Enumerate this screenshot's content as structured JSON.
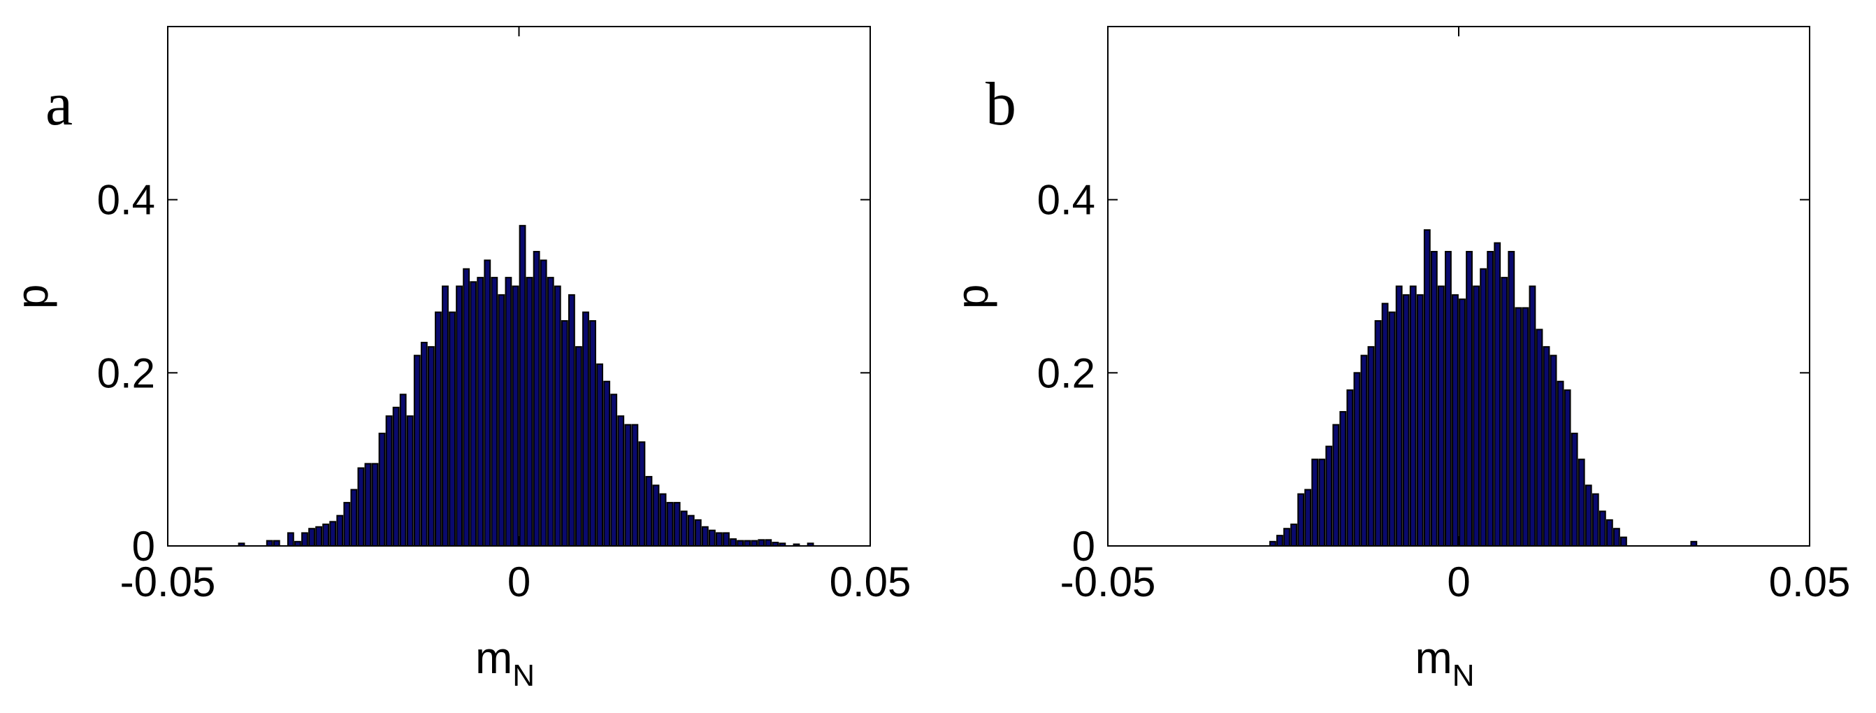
{
  "chart_data": [
    {
      "type": "bar",
      "panel_label": "a",
      "xlabel": "m",
      "xlabel_subscript": "N",
      "ylabel": "p",
      "xlim": [
        -0.05,
        0.05
      ],
      "ylim": [
        0,
        0.6
      ],
      "xticks": [
        -0.05,
        0,
        0.05
      ],
      "xtick_labels": [
        "-0.05",
        "0",
        "0.05"
      ],
      "yticks": [
        0,
        0.2,
        0.4
      ],
      "ytick_labels": [
        "0",
        "0.2",
        "0.4"
      ],
      "grid": false,
      "bar_color": "#0a0a6e",
      "x": [
        -0.0395,
        -0.0355,
        -0.0345,
        -0.0325,
        -0.0315,
        -0.0305,
        -0.0295,
        -0.0285,
        -0.0275,
        -0.0265,
        -0.0255,
        -0.0245,
        -0.0235,
        -0.0225,
        -0.0215,
        -0.0205,
        -0.0195,
        -0.0185,
        -0.0175,
        -0.0165,
        -0.0155,
        -0.0145,
        -0.0135,
        -0.0125,
        -0.0115,
        -0.0105,
        -0.0095,
        -0.0085,
        -0.0075,
        -0.0065,
        -0.0055,
        -0.0045,
        -0.0035,
        -0.0025,
        -0.0015,
        -0.0005,
        0.0005,
        0.0015,
        0.0025,
        0.0035,
        0.0045,
        0.0055,
        0.0065,
        0.0075,
        0.0085,
        0.0095,
        0.0105,
        0.0115,
        0.0125,
        0.0135,
        0.0145,
        0.0155,
        0.0165,
        0.0175,
        0.0185,
        0.0195,
        0.0205,
        0.0215,
        0.0225,
        0.0235,
        0.0245,
        0.0255,
        0.0265,
        0.0275,
        0.0285,
        0.0295,
        0.0305,
        0.0315,
        0.0325,
        0.0335,
        0.0345,
        0.0355,
        0.0365,
        0.0375,
        0.0395,
        0.0415
      ],
      "values": [
        0.003,
        0.006,
        0.006,
        0.015,
        0.005,
        0.015,
        0.02,
        0.022,
        0.025,
        0.028,
        0.035,
        0.05,
        0.065,
        0.09,
        0.095,
        0.095,
        0.13,
        0.15,
        0.16,
        0.175,
        0.15,
        0.22,
        0.235,
        0.23,
        0.27,
        0.3,
        0.27,
        0.3,
        0.32,
        0.305,
        0.31,
        0.33,
        0.31,
        0.29,
        0.31,
        0.3,
        0.37,
        0.31,
        0.34,
        0.33,
        0.31,
        0.3,
        0.26,
        0.29,
        0.23,
        0.27,
        0.26,
        0.21,
        0.19,
        0.175,
        0.15,
        0.14,
        0.14,
        0.12,
        0.08,
        0.07,
        0.06,
        0.05,
        0.05,
        0.04,
        0.035,
        0.03,
        0.022,
        0.018,
        0.015,
        0.015,
        0.008,
        0.006,
        0.006,
        0.006,
        0.007,
        0.007,
        0.004,
        0.003,
        0.002,
        0.003
      ]
    },
    {
      "type": "bar",
      "panel_label": "b",
      "xlabel": "m",
      "xlabel_subscript": "N",
      "ylabel": "p",
      "xlim": [
        -0.05,
        0.05
      ],
      "ylim": [
        0,
        0.6
      ],
      "xticks": [
        -0.05,
        0,
        0.05
      ],
      "xtick_labels": [
        "-0.05",
        "0",
        "0.05"
      ],
      "yticks": [
        0,
        0.2,
        0.4
      ],
      "ytick_labels": [
        "0",
        "0.2",
        "0.4"
      ],
      "grid": false,
      "bar_color": "#0a0a6e",
      "x": [
        -0.0265,
        -0.0255,
        -0.0245,
        -0.0235,
        -0.0225,
        -0.0215,
        -0.0205,
        -0.0195,
        -0.0185,
        -0.0175,
        -0.0165,
        -0.0155,
        -0.0145,
        -0.0135,
        -0.0125,
        -0.0115,
        -0.0105,
        -0.0095,
        -0.0085,
        -0.0075,
        -0.0065,
        -0.0055,
        -0.0045,
        -0.0035,
        -0.0025,
        -0.0015,
        -0.0005,
        0.0005,
        0.0015,
        0.0025,
        0.0035,
        0.0045,
        0.0055,
        0.0065,
        0.0075,
        0.0085,
        0.0095,
        0.0105,
        0.0115,
        0.0125,
        0.0135,
        0.0145,
        0.0155,
        0.0165,
        0.0175,
        0.0185,
        0.0195,
        0.0205,
        0.0215,
        0.0225,
        0.0235,
        0.0335
      ],
      "values": [
        0.005,
        0.012,
        0.02,
        0.025,
        0.06,
        0.065,
        0.1,
        0.1,
        0.115,
        0.14,
        0.155,
        0.18,
        0.2,
        0.22,
        0.23,
        0.26,
        0.28,
        0.27,
        0.3,
        0.29,
        0.3,
        0.29,
        0.365,
        0.34,
        0.3,
        0.34,
        0.29,
        0.285,
        0.34,
        0.3,
        0.32,
        0.34,
        0.35,
        0.31,
        0.34,
        0.275,
        0.275,
        0.3,
        0.25,
        0.23,
        0.22,
        0.19,
        0.18,
        0.13,
        0.1,
        0.07,
        0.06,
        0.04,
        0.03,
        0.02,
        0.01,
        0.005
      ]
    }
  ]
}
